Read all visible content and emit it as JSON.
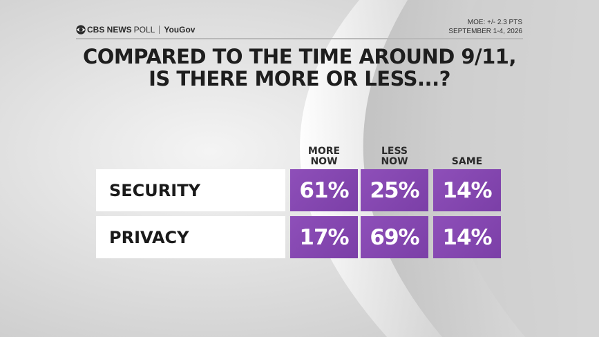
{
  "header": {
    "brand": "CBS NEWS",
    "brand_suffix": "POLL",
    "partner": "YouGov",
    "moe": "MOE: +/- 2.3 PTS",
    "dates": "SEPTEMBER 1-4, 2026"
  },
  "title_line1": "COMPARED TO THE TIME AROUND 9/11,",
  "title_line2": "IS THERE MORE OR LESS...?",
  "colors": {
    "cell_purple": "#7b3fa7",
    "cell_purple_light": "#8e4fb9",
    "row_bg": "#ffffff",
    "text_dark": "#1e1e1e"
  },
  "chart_data": {
    "type": "table",
    "columns": [
      "MORE\nNOW",
      "LESS\nNOW",
      "SAME"
    ],
    "rows": [
      {
        "label": "SECURITY",
        "values": [
          61,
          25,
          14
        ],
        "display": [
          "61%",
          "25%",
          "14%"
        ]
      },
      {
        "label": "PRIVACY",
        "values": [
          17,
          69,
          14
        ],
        "display": [
          "17%",
          "69%",
          "14%"
        ]
      }
    ],
    "unit": "%"
  }
}
